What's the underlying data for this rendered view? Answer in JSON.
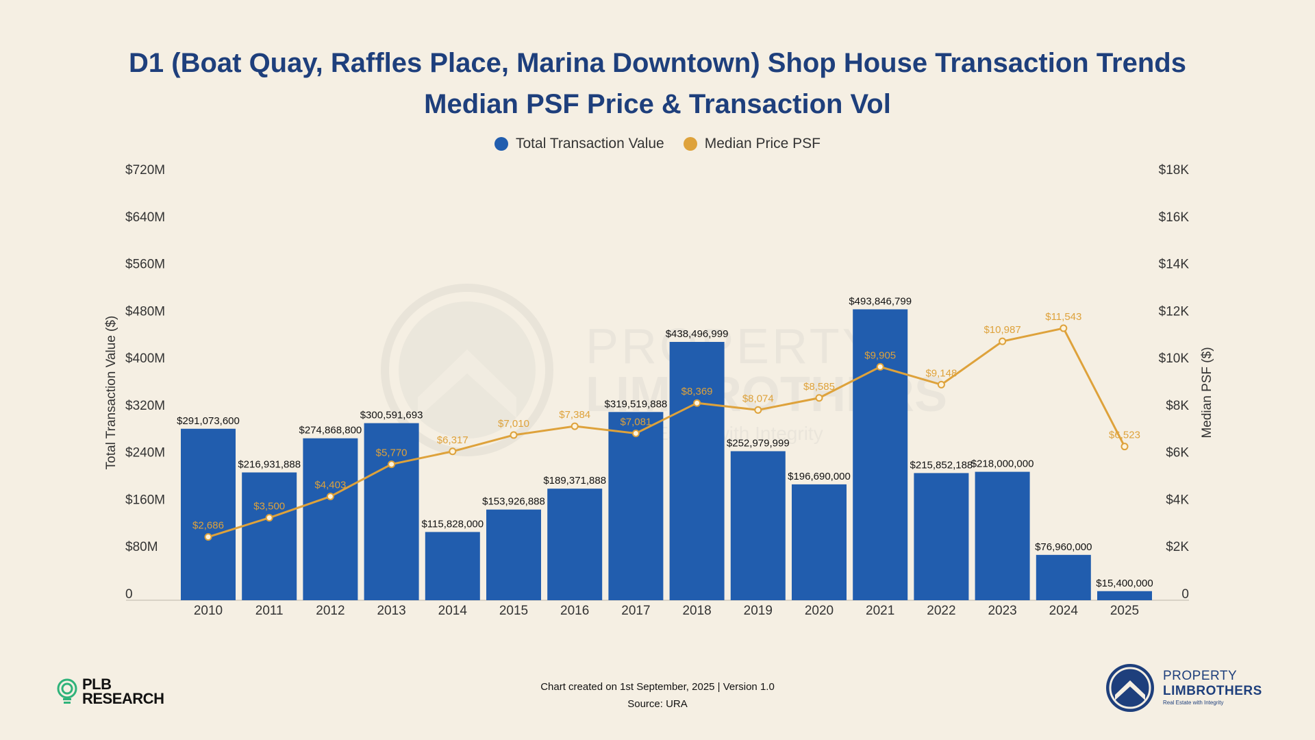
{
  "chart_data": {
    "type": "bar+line",
    "title_line1": "D1 (Boat Quay, Raffles Place, Marina Downtown) Shop House Transaction Trends",
    "title_line2": "Median PSF Price & Transaction Vol",
    "categories": [
      "2010",
      "2011",
      "2012",
      "2013",
      "2014",
      "2015",
      "2016",
      "2017",
      "2018",
      "2019",
      "2020",
      "2021",
      "2022",
      "2023",
      "2024",
      "2025"
    ],
    "series": [
      {
        "name": "Total Transaction Value",
        "kind": "bar",
        "axis": "left",
        "color": "#215dae",
        "values": [
          291073600,
          216931888,
          274868800,
          300591693,
          115828000,
          153926888,
          189371888,
          319519888,
          438496999,
          252979999,
          196690000,
          493846799,
          215852188,
          218000000,
          76960000,
          15400000
        ],
        "labels": [
          "$291,073,600",
          "$216,931,888",
          "$274,868,800",
          "$300,591,693",
          "$115,828,000",
          "$153,926,888",
          "$189,371,888",
          "$319,519,888",
          "$438,496,999",
          "$252,979,999",
          "$196,690,000",
          "$493,846,799",
          "$215,852,188",
          "$218,000,000",
          "$76,960,000",
          "$15,400,000"
        ]
      },
      {
        "name": "Median Price PSF",
        "kind": "line",
        "axis": "right",
        "color": "#dea23b",
        "values": [
          2686,
          3500,
          4403,
          5770,
          6317,
          7010,
          7384,
          7081,
          8369,
          8074,
          8585,
          9905,
          9148,
          10987,
          11543,
          6523
        ],
        "labels": [
          "$2,686",
          "$3,500",
          "$4,403",
          "$5,770",
          "$6,317",
          "$7,010",
          "$7,384",
          "$7,081",
          "$8,369",
          "$8,074",
          "$8,585",
          "$9,905",
          "$9,148",
          "$10,987",
          "$11,543",
          "$6,523"
        ]
      }
    ],
    "y_left": {
      "label": "Total Transaction Value ($)",
      "range": [
        0,
        720000000
      ],
      "ticks": [
        "0",
        "$80M",
        "$160M",
        "$240M",
        "$320M",
        "$400M",
        "$480M",
        "$560M",
        "$640M",
        "$720M"
      ]
    },
    "y_right": {
      "label": "Median PSF ($)",
      "range": [
        0,
        18000
      ],
      "ticks": [
        "0",
        "$2K",
        "$4K",
        "$6K",
        "$8K",
        "$10K",
        "$12K",
        "$14K",
        "$16K",
        "$18K"
      ]
    },
    "grid": false,
    "legend_position": "top-center"
  },
  "watermark": {
    "line1": "PROPERTY",
    "line2": "LIMBROTHERS",
    "line3": "Real Estate with Integrity"
  },
  "footer": {
    "line1": "Chart created on 1st September, 2025 | Version 1.0",
    "line2": "Source: URA"
  },
  "logos": {
    "left_line1": "PLB",
    "left_line2": "RESEARCH",
    "right_line1": "PROPERTY",
    "right_line2": "LIMBROTHERS",
    "right_tagline": "Real Estate with Integrity"
  },
  "colors": {
    "background": "#f5efe3",
    "title": "#1e3f7c",
    "bar": "#215dae",
    "line": "#dea23b",
    "axis_text": "#333333"
  }
}
